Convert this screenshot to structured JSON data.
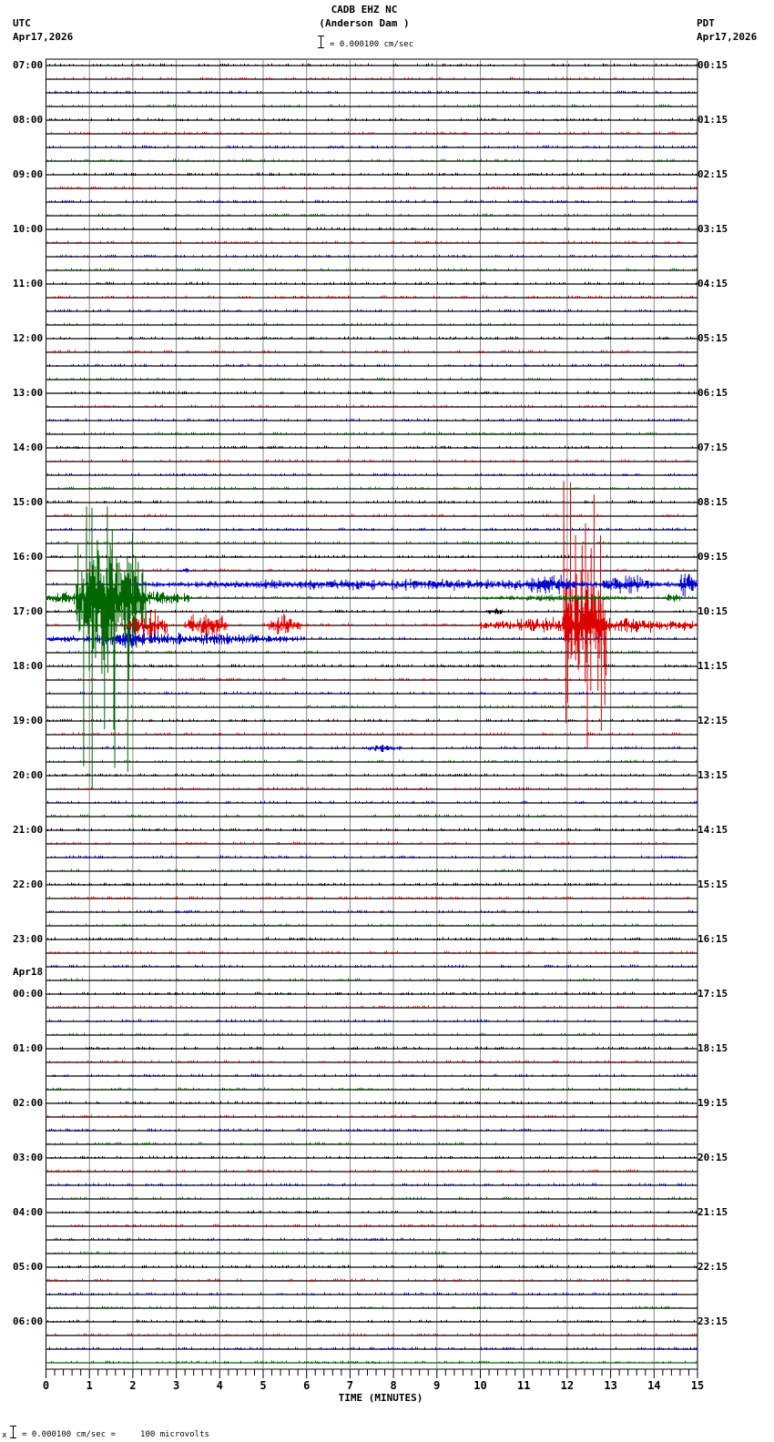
{
  "header": {
    "station": "CADB EHZ NC",
    "location": "(Anderson Dam )",
    "scale_text": "= 0.000100 cm/sec",
    "left_tz": "UTC",
    "left_date": "Apr17,2026",
    "right_tz": "PDT",
    "right_date": "Apr17,2026"
  },
  "footer": {
    "scale_text": "= 0.000100 cm/sec =     100 microvolts",
    "marker": "x"
  },
  "left_labels": [
    "07:00",
    "08:00",
    "09:00",
    "10:00",
    "11:00",
    "12:00",
    "13:00",
    "14:00",
    "15:00",
    "16:00",
    "17:00",
    "18:00",
    "19:00",
    "20:00",
    "21:00",
    "22:00",
    "23:00",
    "00:00",
    "01:00",
    "02:00",
    "03:00",
    "04:00",
    "05:00",
    "06:00"
  ],
  "date_change_label": "Apr18",
  "right_labels": [
    "00:15",
    "01:15",
    "02:15",
    "03:15",
    "04:15",
    "05:15",
    "06:15",
    "07:15",
    "08:15",
    "09:15",
    "10:15",
    "11:15",
    "12:15",
    "13:15",
    "14:15",
    "15:15",
    "16:15",
    "17:15",
    "18:15",
    "19:15",
    "20:15",
    "21:15",
    "22:15",
    "23:15"
  ],
  "colors": {
    "trace": [
      "#000000",
      "#dd0000",
      "#0000cc",
      "#006600"
    ],
    "grid": "#888888",
    "baseline": "#000000"
  },
  "chart_data": {
    "type": "line",
    "title": "CADB EHZ NC (Anderson Dam )",
    "subtitle": "= 0.000100 cm/sec",
    "xlabel": "TIME (MINUTES)",
    "ylabel": "",
    "x_ticks": [
      0,
      1,
      2,
      3,
      4,
      5,
      6,
      7,
      8,
      9,
      10,
      11,
      12,
      13,
      14,
      15
    ],
    "xlim": [
      0,
      15
    ],
    "rows": 96,
    "row_minutes": 15,
    "grid": true,
    "series_colors_cycle": [
      "black",
      "red",
      "blue",
      "green"
    ],
    "events": [
      {
        "row": 37,
        "color": "blue",
        "start": 3.0,
        "end": 3.4,
        "amp": 3
      },
      {
        "row": 38,
        "color": "blue",
        "start": 2.0,
        "end": 15,
        "amp": 6
      },
      {
        "row": 38,
        "color": "blue",
        "start": 11.0,
        "end": 12.2,
        "amp": 12
      },
      {
        "row": 38,
        "color": "blue",
        "start": 12.8,
        "end": 14.0,
        "amp": 12
      },
      {
        "row": 38,
        "color": "blue",
        "start": 14.5,
        "end": 15.0,
        "amp": 14
      },
      {
        "row": 39,
        "color": "green",
        "start": 0.0,
        "end": 3.3,
        "amp": 12
      },
      {
        "row": 39,
        "color": "green",
        "start": 0.7,
        "end": 2.3,
        "amp": 95,
        "spike_up": 130,
        "spike_down": 225
      },
      {
        "row": 39,
        "color": "green",
        "start": 9.8,
        "end": 13.5,
        "amp": 4
      },
      {
        "row": 39,
        "color": "green",
        "start": 14.3,
        "end": 14.6,
        "amp": 8
      },
      {
        "row": 40,
        "color": "black",
        "start": 10.1,
        "end": 10.6,
        "amp": 6
      },
      {
        "row": 41,
        "color": "red",
        "start": 1.8,
        "end": 2.8,
        "amp": 18
      },
      {
        "row": 41,
        "color": "red",
        "start": 3.2,
        "end": 4.2,
        "amp": 16
      },
      {
        "row": 41,
        "color": "red",
        "start": 5.1,
        "end": 5.9,
        "amp": 12
      },
      {
        "row": 41,
        "color": "red",
        "start": 10.0,
        "end": 15.0,
        "amp": 10
      },
      {
        "row": 41,
        "color": "red",
        "start": 11.9,
        "end": 12.9,
        "amp": 80,
        "spike_up": 175,
        "spike_down": 145
      },
      {
        "row": 42,
        "color": "blue",
        "start": 0.0,
        "end": 6.0,
        "amp": 7
      },
      {
        "row": 42,
        "color": "blue",
        "start": 1.6,
        "end": 2.2,
        "amp": 14
      },
      {
        "row": 50,
        "color": "blue",
        "start": 7.3,
        "end": 8.2,
        "amp": 4
      }
    ]
  }
}
